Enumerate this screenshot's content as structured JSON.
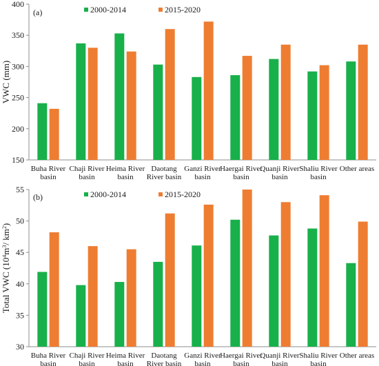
{
  "colors": {
    "series_2000_2014": "#18b04a",
    "series_2015_2020": "#ee7d31",
    "axis": "#8c8c8c"
  },
  "chart_data": [
    {
      "type": "bar",
      "panel_label": "(a)",
      "ylabel": "VWC (mm)",
      "ylim": [
        150,
        400
      ],
      "yticks": [
        150,
        200,
        250,
        300,
        350,
        400
      ],
      "categories": [
        [
          "Buha River",
          "basin"
        ],
        [
          "Chaji River",
          "basin"
        ],
        [
          "Heima River",
          "basin"
        ],
        [
          "Daotang",
          "River basin"
        ],
        [
          "Ganzi River",
          "basin"
        ],
        [
          "Haergai River",
          "basin"
        ],
        [
          "Quanji River",
          "basin"
        ],
        [
          "Shaliu River",
          "basin"
        ],
        [
          "Other areas"
        ]
      ],
      "series": [
        {
          "name": "2000-2014",
          "values": [
            241,
            337,
            353,
            303,
            283,
            286,
            312,
            292,
            308
          ]
        },
        {
          "name": "2015-2020",
          "values": [
            232,
            330,
            324,
            360,
            372,
            317,
            335,
            302,
            335
          ]
        }
      ],
      "legend_position": "top-left",
      "grid": false
    },
    {
      "type": "bar",
      "panel_label": "(b)",
      "ylabel_parts": [
        "Total VWC (10",
        "4",
        "m",
        "3",
        "/ km",
        "2",
        ")"
      ],
      "ylim": [
        30,
        55
      ],
      "yticks": [
        30,
        35,
        40,
        45,
        50,
        55
      ],
      "categories": [
        [
          "Buha River",
          "basin"
        ],
        [
          "Chaji River",
          "basin"
        ],
        [
          "Heima River",
          "basin"
        ],
        [
          "Daotang",
          "River basin"
        ],
        [
          "Ganzi River",
          "basin"
        ],
        [
          "Haergai River",
          "basin"
        ],
        [
          "Quanji River",
          "basin"
        ],
        [
          "Shaliu River",
          "basin"
        ],
        [
          "Other areas"
        ]
      ],
      "series": [
        {
          "name": "2000-2014",
          "values": [
            41.9,
            39.8,
            40.3,
            43.5,
            46.1,
            50.2,
            47.7,
            48.8,
            43.3
          ]
        },
        {
          "name": "2015-2020",
          "values": [
            48.2,
            46.0,
            45.5,
            51.2,
            52.6,
            55.0,
            53.0,
            54.1,
            49.9
          ]
        }
      ],
      "legend_position": "top-left",
      "grid": false
    }
  ]
}
